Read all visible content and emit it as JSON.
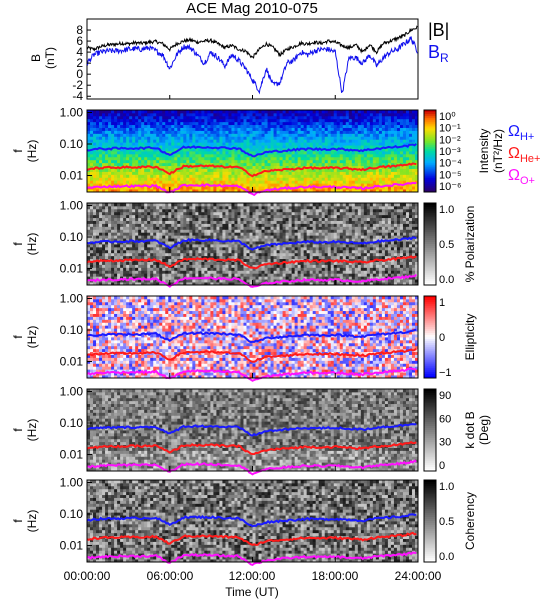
{
  "title": "ACE Mag 2010-075",
  "time_axis": {
    "xlabel": "Time (UT)",
    "tick_labels": [
      "00:00:00",
      "06:00:00",
      "12:00:00",
      "18:00:00",
      "24:00:00"
    ],
    "range_hours": [
      0,
      24
    ]
  },
  "legend_b": {
    "total_label": "|B|",
    "radial_label": "B",
    "radial_sub": "R",
    "total_color": "#000000",
    "radial_color": "#1010ee"
  },
  "gyro_legend": {
    "h_main": "Ω",
    "h_sub": "H+",
    "h_color": "#1a1aff",
    "he_main": "Ω",
    "he_sub": "He+",
    "he_color": "#ff1a1a",
    "o_main": "Ω",
    "o_sub": "O+",
    "o_color": "#ff10ff"
  },
  "colors": {
    "h_plus_line": "#1a1aff",
    "he_plus_line": "#ff1a1a",
    "o_plus_line": "#ff10ff",
    "frame": "#000000"
  },
  "panels": [
    {
      "ylabel": "f",
      "ylabel2": "(Hz)",
      "ticks": [
        "1.00",
        "0.10",
        "0.01"
      ],
      "cb_title": "Intensity",
      "cb_unit": "(nT²/Hz)",
      "cb_ticks": [
        "10⁰",
        "10⁻¹",
        "10⁻²",
        "10⁻³",
        "10⁻⁴",
        "10⁻⁵",
        "10⁻⁶"
      ]
    },
    {
      "ylabel": "f",
      "ylabel2": "(Hz)",
      "ticks": [
        "1.00",
        "0.10",
        "0.01"
      ],
      "cb_title": "% Polarization",
      "cb_unit": "",
      "cb_ticks": [
        "1.0",
        "0.5",
        "0.0"
      ]
    },
    {
      "ylabel": "f",
      "ylabel2": "(Hz)",
      "ticks": [
        "1.00",
        "0.10",
        "0.01"
      ],
      "cb_title": "Ellipticity",
      "cb_unit": "",
      "cb_ticks": [
        "1",
        "0",
        "−1"
      ]
    },
    {
      "ylabel": "f",
      "ylabel2": "(Hz)",
      "ticks": [
        "1.00",
        "0.10",
        "0.01"
      ],
      "cb_title": "k dot B",
      "cb_unit": "(Deg)",
      "cb_ticks": [
        "90",
        "60",
        "30",
        "0"
      ]
    },
    {
      "ylabel": "f",
      "ylabel2": "(Hz)",
      "ticks": [
        "1.00",
        "0.10",
        "0.01"
      ],
      "cb_title": "Coherency",
      "cb_unit": "",
      "cb_ticks": [
        "1.0",
        "0.5",
        "0.0"
      ]
    }
  ],
  "chart_data": [
    {
      "type": "line",
      "ylabel": "B (nT)",
      "ylim": [
        -4.5,
        10
      ],
      "yticks": [
        -4,
        -2,
        0,
        2,
        4,
        6,
        8
      ],
      "x": [
        0,
        0.5,
        1,
        1.5,
        2,
        2.5,
        3,
        3.5,
        4,
        4.5,
        5,
        5.5,
        6,
        6.5,
        7,
        7.5,
        8,
        8.5,
        9,
        9.5,
        10,
        10.5,
        11,
        11.5,
        12,
        12.5,
        13,
        13.5,
        14,
        14.5,
        15,
        15.5,
        16,
        16.5,
        17,
        17.5,
        18,
        18.5,
        19,
        19.5,
        20,
        20.5,
        21,
        21.5,
        22,
        22.5,
        23,
        23.5,
        24
      ],
      "series": [
        {
          "name": "|B|",
          "values": [
            4.8,
            4.5,
            5.0,
            5.3,
            5.4,
            5.6,
            5.5,
            5.7,
            5.6,
            5.8,
            5.9,
            5.5,
            4.5,
            5.5,
            6.0,
            6.2,
            5.8,
            6.0,
            6.1,
            5.5,
            4.8,
            5.2,
            4.5,
            4.2,
            3.0,
            4.5,
            5.5,
            4.8,
            3.5,
            4.5,
            5.0,
            5.6,
            5.5,
            5.8,
            5.6,
            6.0,
            5.8,
            5.2,
            4.8,
            5.3,
            4.0,
            5.4,
            4.0,
            5.6,
            6.0,
            6.5,
            7.0,
            8.0,
            8.5
          ]
        },
        {
          "name": "B",
          "values": [
            2.0,
            3.5,
            4.0,
            4.2,
            4.2,
            4.3,
            4.5,
            4.6,
            4.5,
            4.8,
            4.2,
            3.5,
            1.0,
            3.5,
            5.0,
            4.8,
            3.5,
            2.0,
            4.0,
            3.0,
            1.5,
            3.5,
            2.5,
            1.0,
            -1.0,
            -3.0,
            1.0,
            -2.0,
            -1.5,
            2.0,
            2.5,
            4.0,
            3.5,
            4.2,
            4.5,
            4.5,
            4.0,
            -3.5,
            3.0,
            3.0,
            2.0,
            3.5,
            1.5,
            3.0,
            4.0,
            4.5,
            5.5,
            6.5,
            4.0
          ]
        }
      ]
    },
    {
      "type": "line",
      "ylabel": "f (Hz)",
      "yscale": "log",
      "ylim": [
        0.003,
        1.2
      ],
      "x": [
        0,
        1,
        2,
        3,
        4,
        5,
        6,
        7,
        8,
        9,
        10,
        11,
        12,
        13,
        14,
        15,
        16,
        17,
        18,
        19,
        20,
        21,
        22,
        23,
        24
      ],
      "series": [
        {
          "name": "H+",
          "values": [
            0.065,
            0.07,
            0.072,
            0.073,
            0.074,
            0.076,
            0.045,
            0.078,
            0.08,
            0.079,
            0.075,
            0.073,
            0.04,
            0.055,
            0.06,
            0.065,
            0.07,
            0.068,
            0.07,
            0.066,
            0.062,
            0.072,
            0.078,
            0.085,
            0.1
          ]
        },
        {
          "name": "He+",
          "values": [
            0.016,
            0.0175,
            0.018,
            0.0183,
            0.0185,
            0.019,
            0.0115,
            0.0195,
            0.02,
            0.0198,
            0.0188,
            0.0183,
            0.01,
            0.0138,
            0.015,
            0.0163,
            0.0175,
            0.017,
            0.0175,
            0.0165,
            0.0155,
            0.018,
            0.0195,
            0.0213,
            0.025
          ]
        },
        {
          "name": "O+",
          "values": [
            0.004,
            0.0044,
            0.0045,
            0.0046,
            0.0046,
            0.0047,
            0.0028,
            0.0049,
            0.005,
            0.0049,
            0.0047,
            0.0046,
            0.0025,
            0.0034,
            0.0038,
            0.0041,
            0.0044,
            0.0043,
            0.0044,
            0.0041,
            0.0039,
            0.0045,
            0.0049,
            0.0053,
            0.0062
          ]
        }
      ]
    }
  ]
}
